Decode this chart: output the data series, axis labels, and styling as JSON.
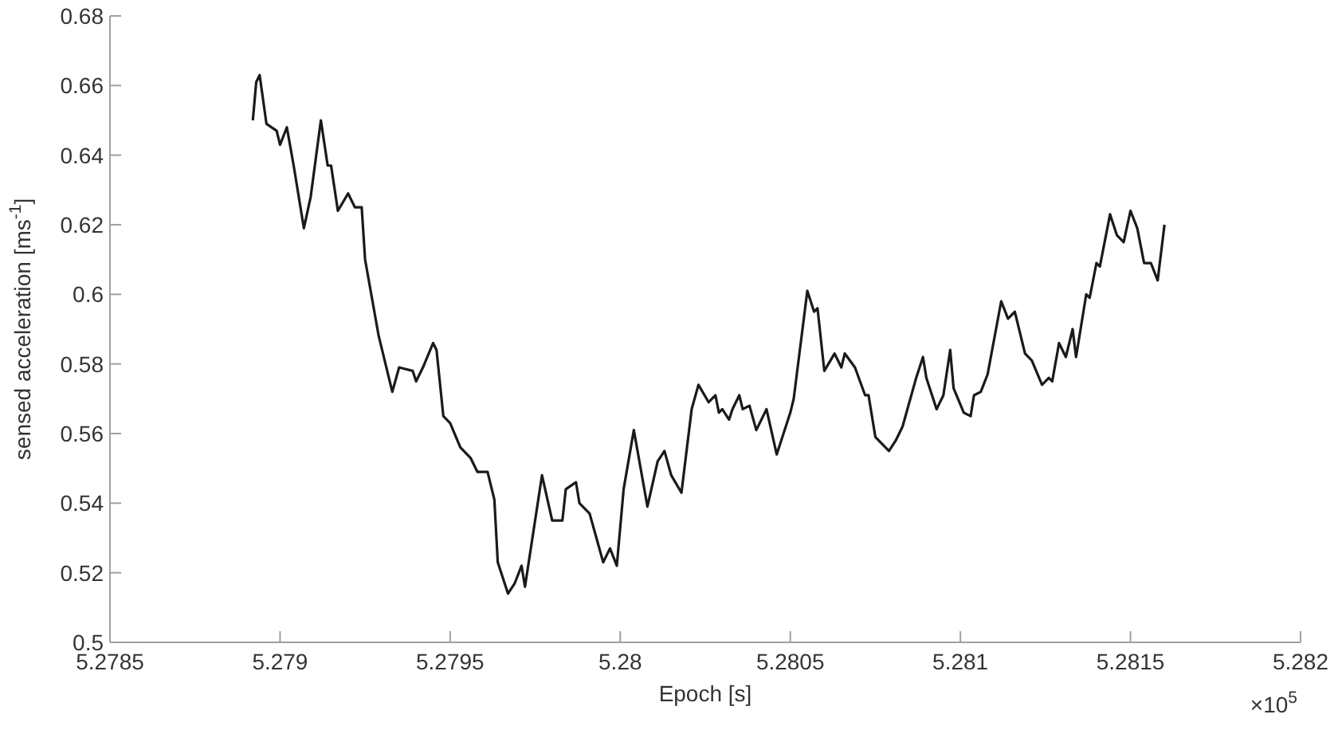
{
  "chart_data": {
    "type": "line",
    "xlabel": "Epoch [s]",
    "ylabel": "sensed acceleration [ms$^{-1}$]",
    "annotations": [
      "×10$^{5}$"
    ],
    "xlim": [
      5.2785,
      5.282
    ],
    "xticks": [
      5.2785,
      5.279,
      5.2795,
      5.28,
      5.2805,
      5.281,
      5.2815,
      5.282
    ],
    "ylim": [
      0.5,
      0.68
    ],
    "yticks": [
      0.5,
      0.52,
      0.54,
      0.56,
      0.58,
      0.6,
      0.62,
      0.64,
      0.66,
      0.68
    ],
    "grid": false,
    "series": [
      {
        "color": "#1a1a1a",
        "x": [
          5.27892,
          5.27893,
          5.27894,
          5.27896,
          5.27899,
          5.279,
          5.27902,
          5.27904,
          5.27907,
          5.27909,
          5.27912,
          5.27914,
          5.27915,
          5.27917,
          5.2792,
          5.27922,
          5.27924,
          5.27925,
          5.27929,
          5.27933,
          5.27935,
          5.27939,
          5.2794,
          5.27942,
          5.27945,
          5.27946,
          5.27948,
          5.2795,
          5.27953,
          5.27956,
          5.27958,
          5.27961,
          5.27963,
          5.27964,
          5.27967,
          5.27969,
          5.27971,
          5.27972,
          5.27977,
          5.2798,
          5.27983,
          5.27984,
          5.27987,
          5.27988,
          5.27991,
          5.27993,
          5.27995,
          5.27997,
          5.27999,
          5.28001,
          5.28004,
          5.28008,
          5.28011,
          5.28013,
          5.28015,
          5.28018,
          5.28021,
          5.28023,
          5.28026,
          5.28028,
          5.28029,
          5.2803,
          5.28032,
          5.28033,
          5.28035,
          5.28036,
          5.28038,
          5.2804,
          5.28043,
          5.28046,
          5.2805,
          5.28051,
          5.28055,
          5.28057,
          5.28058,
          5.2806,
          5.28063,
          5.28065,
          5.28066,
          5.28069,
          5.28072,
          5.28073,
          5.28075,
          5.28079,
          5.28081,
          5.28083,
          5.28087,
          5.28089,
          5.2809,
          5.28093,
          5.28095,
          5.28097,
          5.28098,
          5.28101,
          5.28103,
          5.28104,
          5.28106,
          5.28108,
          5.28112,
          5.28114,
          5.28116,
          5.28119,
          5.28121,
          5.28124,
          5.28126,
          5.28127,
          5.28129,
          5.28131,
          5.28133,
          5.28134,
          5.28137,
          5.28138,
          5.2814,
          5.28141,
          5.28144,
          5.28146,
          5.28148,
          5.2815,
          5.28152,
          5.28154,
          5.28156,
          5.28158,
          5.2816
        ],
        "values": [
          0.65,
          0.661,
          0.663,
          0.649,
          0.647,
          0.643,
          0.648,
          0.637,
          0.619,
          0.628,
          0.65,
          0.637,
          0.637,
          0.624,
          0.629,
          0.625,
          0.625,
          0.61,
          0.588,
          0.572,
          0.579,
          0.578,
          0.575,
          0.579,
          0.586,
          0.584,
          0.565,
          0.563,
          0.556,
          0.553,
          0.549,
          0.549,
          0.541,
          0.523,
          0.514,
          0.517,
          0.522,
          0.516,
          0.548,
          0.535,
          0.535,
          0.544,
          0.546,
          0.54,
          0.537,
          0.53,
          0.523,
          0.527,
          0.522,
          0.544,
          0.561,
          0.539,
          0.552,
          0.555,
          0.548,
          0.543,
          0.567,
          0.574,
          0.569,
          0.571,
          0.566,
          0.567,
          0.564,
          0.567,
          0.571,
          0.567,
          0.568,
          0.561,
          0.567,
          0.554,
          0.566,
          0.57,
          0.601,
          0.595,
          0.596,
          0.578,
          0.583,
          0.579,
          0.583,
          0.579,
          0.571,
          0.571,
          0.559,
          0.555,
          0.558,
          0.562,
          0.576,
          0.582,
          0.576,
          0.567,
          0.571,
          0.584,
          0.573,
          0.566,
          0.565,
          0.571,
          0.572,
          0.577,
          0.598,
          0.593,
          0.595,
          0.583,
          0.581,
          0.574,
          0.576,
          0.575,
          0.586,
          0.582,
          0.59,
          0.582,
          0.6,
          0.599,
          0.609,
          0.608,
          0.623,
          0.617,
          0.615,
          0.624,
          0.619,
          0.609,
          0.609,
          0.604,
          0.62
        ]
      }
    ]
  }
}
